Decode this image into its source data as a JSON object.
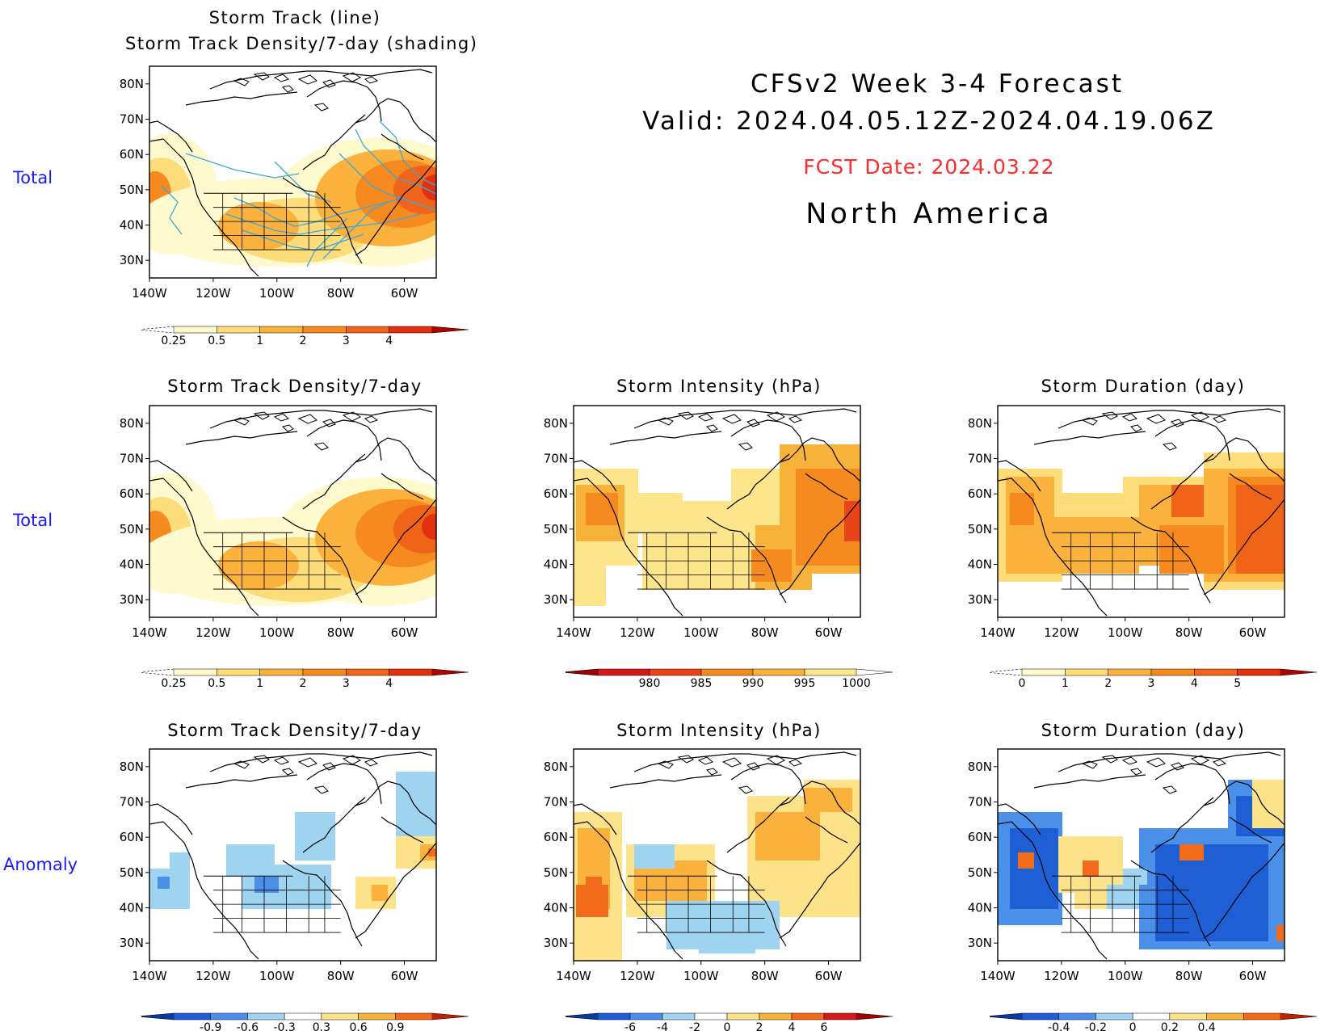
{
  "header": {
    "title_line1": "CFSv2 Week 3-4 Forecast",
    "title_line2": "Valid: 2024.04.05.12Z-2024.04.19.06Z",
    "fcst_date": "FCST Date: 2024.03.22",
    "region": "North America"
  },
  "row_labels": {
    "row1": "Total",
    "row2": "Total",
    "row3": "Anomaly"
  },
  "axes": {
    "lat_labels": [
      "80N",
      "70N",
      "60N",
      "50N",
      "40N",
      "30N"
    ],
    "lon_labels": [
      "140W",
      "120W",
      "100W",
      "80W",
      "60W"
    ]
  },
  "colors": {
    "brand_blue": "#1a1aff",
    "fcst_red": "#ff2a2a",
    "track_line": "#3aa8e0",
    "total_scale": [
      "#fffacd",
      "#fddc7a",
      "#fbb23c",
      "#f78a1e",
      "#f0641a",
      "#e3300e"
    ],
    "intensity_scale": [
      "#d7191c",
      "#e8461a",
      "#f58a1e",
      "#f7b23a",
      "#fce58a"
    ],
    "anomaly_scale": [
      "#1f5fd6",
      "#4a90e8",
      "#9fd4f0",
      "#ffffff",
      "#fce38a",
      "#fbb23c",
      "#f26b1b"
    ]
  },
  "panels": {
    "p1": {
      "title1": "Storm Track (line)",
      "title2": "Storm Track Density/7-day (shading)",
      "colorbar": [
        "0.25",
        "0.5",
        "1",
        "2",
        "3",
        "4"
      ]
    },
    "p2": {
      "title": "Storm Track Density/7-day",
      "colorbar": [
        "0.25",
        "0.5",
        "1",
        "2",
        "3",
        "4"
      ]
    },
    "p3": {
      "title": "Storm Intensity (hPa)",
      "colorbar": [
        "980",
        "985",
        "990",
        "995",
        "1000"
      ]
    },
    "p4": {
      "title": "Storm Duration (day)",
      "colorbar": [
        "0",
        "1",
        "2",
        "3",
        "4",
        "5"
      ]
    },
    "p5": {
      "title": "Storm Track Density/7-day",
      "colorbar": [
        "-0.9",
        "-0.6",
        "-0.3",
        "0.3",
        "0.6",
        "0.9"
      ]
    },
    "p6": {
      "title": "Storm Intensity (hPa)",
      "colorbar": [
        "-6",
        "-4",
        "-2",
        "0",
        "2",
        "4",
        "6"
      ]
    },
    "p7": {
      "title": "Storm Duration (day)",
      "colorbar": [
        "-0.4",
        "-0.2",
        "0",
        "0.2",
        "0.4"
      ]
    }
  }
}
